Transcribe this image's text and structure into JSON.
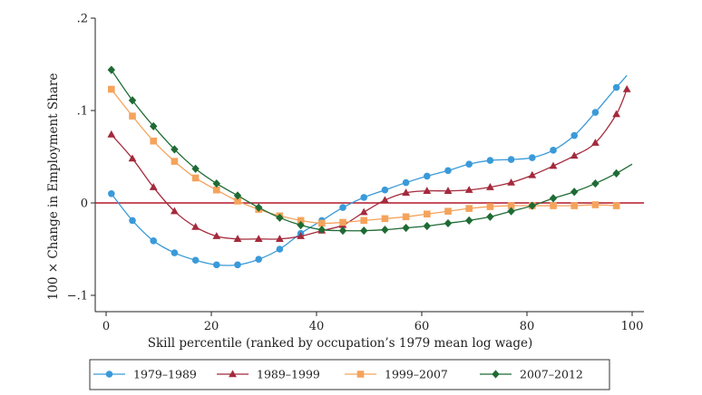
{
  "chart_data": {
    "type": "line",
    "title": "",
    "xlabel": "Skill percentile (ranked by occupation’s 1979 mean log wage)",
    "ylabel": "100 × Change in Employment Share",
    "xlim": [
      0,
      100
    ],
    "ylim": [
      -0.1,
      0.2
    ],
    "x_ticks": [
      0,
      20,
      40,
      60,
      80,
      100
    ],
    "y_ticks": [
      -0.1,
      0,
      0.1,
      0.2
    ],
    "x_tick_labels": [
      "0",
      "20",
      "40",
      "60",
      "80",
      "100"
    ],
    "y_tick_labels": [
      "−.1",
      "0",
      ".1",
      ".2"
    ],
    "grid": false,
    "reference_line": {
      "y": 0,
      "color": "#b2182b"
    },
    "legend_position": "bottom",
    "series": [
      {
        "name": "1979–1989",
        "color": "#3a9ad9",
        "marker": "circle",
        "points": [
          [
            1,
            0.01
          ],
          [
            5,
            -0.019
          ],
          [
            9,
            -0.041
          ],
          [
            13,
            -0.054
          ],
          [
            17,
            -0.062
          ],
          [
            21,
            -0.067
          ],
          [
            25,
            -0.067
          ],
          [
            29,
            -0.061
          ],
          [
            33,
            -0.05
          ],
          [
            37,
            -0.033
          ],
          [
            41,
            -0.019
          ],
          [
            45,
            -0.005
          ],
          [
            49,
            0.006
          ],
          [
            53,
            0.014
          ],
          [
            57,
            0.022
          ],
          [
            61,
            0.029
          ],
          [
            65,
            0.035
          ],
          [
            69,
            0.042
          ],
          [
            73,
            0.046
          ],
          [
            77,
            0.047
          ],
          [
            81,
            0.049
          ],
          [
            85,
            0.057
          ],
          [
            89,
            0.073
          ],
          [
            93,
            0.098
          ],
          [
            97,
            0.125
          ]
        ],
        "line_end": [
          99,
          0.138
        ]
      },
      {
        "name": "1989–1999",
        "color": "#a42a3c",
        "marker": "triangle",
        "points": [
          [
            1,
            0.074
          ],
          [
            5,
            0.048
          ],
          [
            9,
            0.017
          ],
          [
            13,
            -0.009
          ],
          [
            17,
            -0.026
          ],
          [
            21,
            -0.036
          ],
          [
            25,
            -0.039
          ],
          [
            29,
            -0.039
          ],
          [
            33,
            -0.039
          ],
          [
            37,
            -0.036
          ],
          [
            41,
            -0.03
          ],
          [
            45,
            -0.024
          ],
          [
            49,
            -0.01
          ],
          [
            53,
            0.003
          ],
          [
            57,
            0.011
          ],
          [
            61,
            0.013
          ],
          [
            65,
            0.013
          ],
          [
            69,
            0.014
          ],
          [
            73,
            0.017
          ],
          [
            77,
            0.022
          ],
          [
            81,
            0.03
          ],
          [
            85,
            0.04
          ],
          [
            89,
            0.051
          ],
          [
            93,
            0.065
          ],
          [
            97,
            0.096
          ],
          [
            99,
            0.123
          ]
        ]
      },
      {
        "name": "1999–2007",
        "color": "#f5a35c",
        "marker": "square",
        "points": [
          [
            1,
            0.123
          ],
          [
            5,
            0.094
          ],
          [
            9,
            0.067
          ],
          [
            13,
            0.045
          ],
          [
            17,
            0.027
          ],
          [
            21,
            0.014
          ],
          [
            25,
            0.002
          ],
          [
            29,
            -0.007
          ],
          [
            33,
            -0.014
          ],
          [
            37,
            -0.019
          ],
          [
            41,
            -0.022
          ],
          [
            45,
            -0.021
          ],
          [
            49,
            -0.019
          ],
          [
            53,
            -0.017
          ],
          [
            57,
            -0.015
          ],
          [
            61,
            -0.012
          ],
          [
            65,
            -0.009
          ],
          [
            69,
            -0.006
          ],
          [
            73,
            -0.004
          ],
          [
            77,
            -0.003
          ],
          [
            81,
            -0.003
          ],
          [
            85,
            -0.003
          ],
          [
            89,
            -0.003
          ],
          [
            93,
            -0.002
          ],
          [
            97,
            -0.003
          ]
        ]
      },
      {
        "name": "2007–2012",
        "color": "#1e6b34",
        "marker": "diamond",
        "points": [
          [
            1,
            0.144
          ],
          [
            5,
            0.111
          ],
          [
            9,
            0.083
          ],
          [
            13,
            0.058
          ],
          [
            17,
            0.037
          ],
          [
            21,
            0.021
          ],
          [
            25,
            0.008
          ],
          [
            29,
            -0.005
          ],
          [
            33,
            -0.016
          ],
          [
            37,
            -0.024
          ],
          [
            41,
            -0.029
          ],
          [
            45,
            -0.03
          ],
          [
            49,
            -0.03
          ],
          [
            53,
            -0.029
          ],
          [
            57,
            -0.027
          ],
          [
            61,
            -0.025
          ],
          [
            65,
            -0.022
          ],
          [
            69,
            -0.019
          ],
          [
            73,
            -0.015
          ],
          [
            77,
            -0.009
          ],
          [
            81,
            -0.003
          ],
          [
            85,
            0.005
          ],
          [
            89,
            0.012
          ],
          [
            93,
            0.021
          ],
          [
            97,
            0.032
          ]
        ],
        "line_end": [
          100,
          0.042
        ]
      }
    ]
  }
}
